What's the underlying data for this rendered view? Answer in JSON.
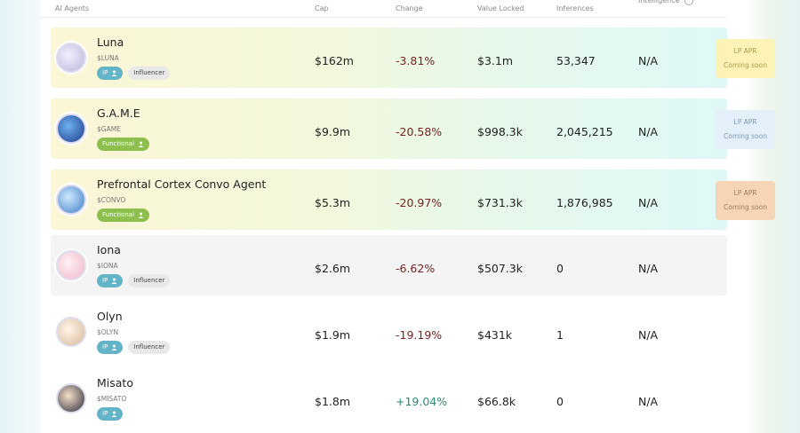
{
  "header": {
    "columns": [
      "AI Agents",
      "Cap",
      "Change",
      "Value Locked",
      "Inferences",
      "Intelligence"
    ]
  },
  "rows": [
    {
      "name": "Luna",
      "ticker": "$LUNA",
      "tags": [
        "IP",
        "Influencer"
      ],
      "cap": "$162m",
      "change": "-3.81%",
      "value_locked": "$3.1m",
      "inferences": "53,347",
      "intelligence": "N/A",
      "lp_apr": {
        "label": "LP APR",
        "status": "Coming soon"
      }
    },
    {
      "name": "G.A.M.E",
      "ticker": "$GAME",
      "tags": [
        "Functional"
      ],
      "cap": "$9.9m",
      "change": "-20.58%",
      "value_locked": "$998.3k",
      "inferences": "2,045,215",
      "intelligence": "N/A",
      "lp_apr": {
        "label": "LP APR",
        "status": "Coming soon"
      }
    },
    {
      "name": "Prefrontal Cortex Convo Agent",
      "ticker": "$CONVO",
      "tags": [
        "Functional"
      ],
      "cap": "$5.3m",
      "change": "-20.97%",
      "value_locked": "$731.3k",
      "inferences": "1,876,985",
      "intelligence": "N/A",
      "lp_apr": {
        "label": "LP APR",
        "status": "Coming soon"
      }
    },
    {
      "name": "Iona",
      "ticker": "$IONA",
      "tags": [
        "IP",
        "Influencer"
      ],
      "cap": "$2.6m",
      "change": "-6.62%",
      "value_locked": "$507.3k",
      "inferences": "0",
      "intelligence": "N/A"
    },
    {
      "name": "Olyn",
      "ticker": "$OLYN",
      "tags": [
        "IP",
        "Influencer"
      ],
      "cap": "$1.9m",
      "change": "-19.19%",
      "value_locked": "$431k",
      "inferences": "1",
      "intelligence": "N/A"
    },
    {
      "name": "Misato",
      "ticker": "$MISATO",
      "tags": [
        "IP"
      ],
      "cap": "$1.8m",
      "change": "+19.04%",
      "value_locked": "$66.8k",
      "inferences": "0",
      "intelligence": "N/A"
    }
  ]
}
